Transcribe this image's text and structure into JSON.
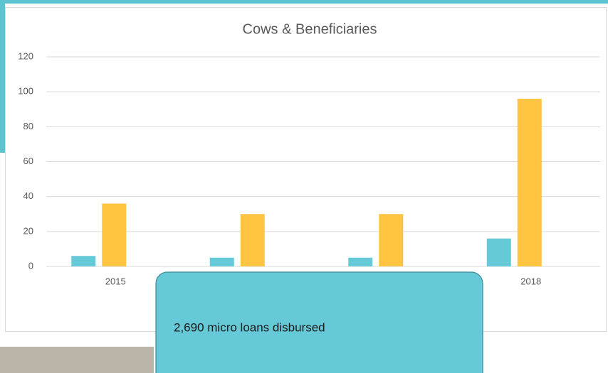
{
  "chart_data": {
    "type": "bar",
    "title": "Cows & Beneficiaries",
    "categories": [
      "2015",
      null,
      null,
      "2018"
    ],
    "series": [
      {
        "color": "#66c9d7",
        "values": [
          6,
          5,
          5,
          16
        ]
      },
      {
        "color": "#ffc441",
        "values": [
          36,
          30,
          30,
          96
        ]
      }
    ],
    "ylim": [
      0,
      120
    ],
    "yticks": [
      0,
      20,
      40,
      60,
      80,
      100,
      120
    ],
    "grid": true
  },
  "callout": {
    "text": "2,690 micro loans disbursed"
  }
}
